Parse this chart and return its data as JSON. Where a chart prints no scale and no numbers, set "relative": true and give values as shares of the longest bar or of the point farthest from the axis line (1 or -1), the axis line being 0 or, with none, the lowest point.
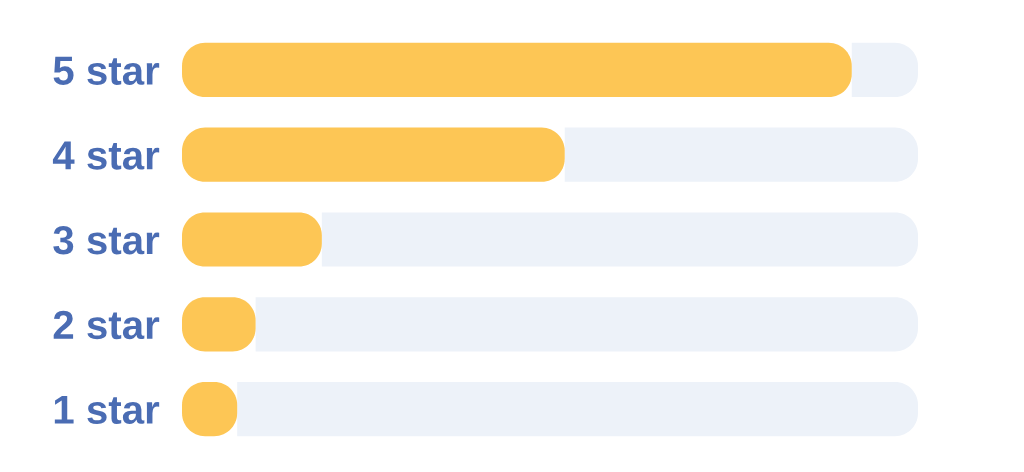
{
  "chart_data": {
    "type": "bar",
    "orientation": "horizontal",
    "stacked": true,
    "relative": true,
    "tick_labels": "y",
    "categories": [
      "5 star",
      "4 star",
      "3 star",
      "2 star",
      "1 star"
    ],
    "series": [
      {
        "color": "#fdc655",
        "values": [
          0.91,
          0.52,
          0.19,
          0.1,
          0.075
        ]
      },
      {
        "color": "#edf2f9",
        "values": [
          0.09,
          0.48,
          0.81,
          0.9,
          0.925
        ]
      }
    ]
  }
}
